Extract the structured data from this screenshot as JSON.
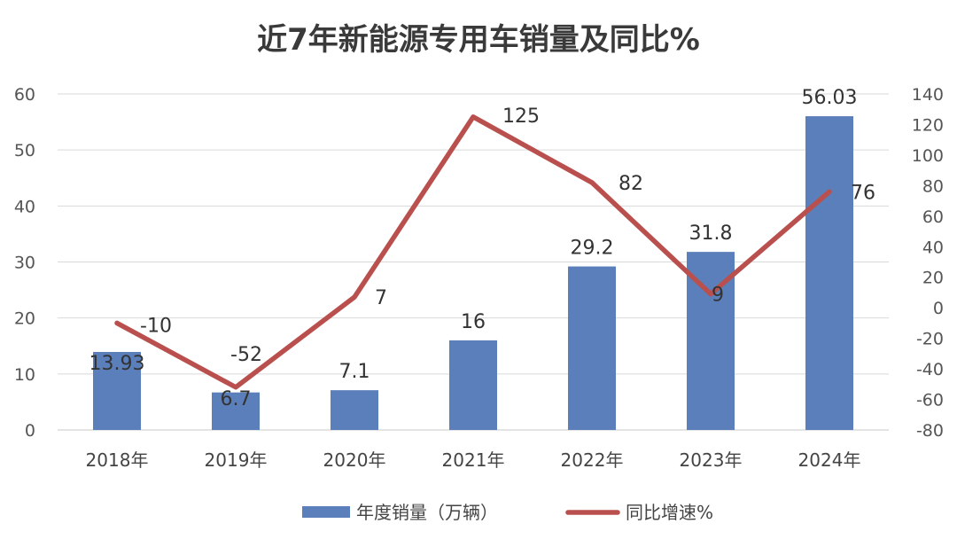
{
  "chart_data": {
    "type": "bar+line",
    "title": "近7年新能源专用车销量及同比%",
    "categories": [
      "2018年",
      "2019年",
      "2020年",
      "2021年",
      "2022年",
      "2023年",
      "2024年"
    ],
    "series": [
      {
        "name": "年度销量（万辆）",
        "type": "bar",
        "axis": "left",
        "color": "#5b7fba",
        "values": [
          13.93,
          6.7,
          7.1,
          16,
          29.2,
          31.8,
          56.03
        ],
        "labels": [
          "13.93",
          "6.7",
          "7.1",
          "16",
          "29.2",
          "31.8",
          "56.03"
        ]
      },
      {
        "name": "同比增速%",
        "type": "line",
        "axis": "right",
        "color": "#b9504e",
        "values": [
          -10,
          -52,
          7,
          125,
          82,
          9,
          76
        ],
        "labels": [
          "-10",
          "-52",
          "7",
          "125",
          "82",
          "9",
          "76"
        ]
      }
    ],
    "y_left": {
      "min": 0,
      "max": 60,
      "step": 10,
      "ticks": [
        "0",
        "10",
        "20",
        "30",
        "40",
        "50",
        "60"
      ]
    },
    "y_right": {
      "min": -80,
      "max": 140,
      "step": 20,
      "ticks": [
        "-80",
        "-60",
        "-40",
        "-20",
        "0",
        "20",
        "40",
        "60",
        "80",
        "100",
        "120",
        "140"
      ]
    },
    "grid": true,
    "legend_position": "bottom-center"
  }
}
